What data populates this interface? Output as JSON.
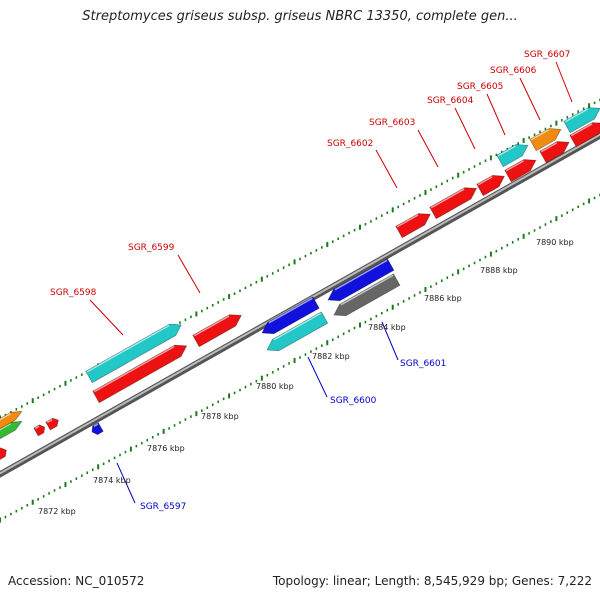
{
  "title": "Streptomyces griseus subsp. griseus NBRC 13350, complete gen...",
  "footer": {
    "accession": "Accession: NC_010572",
    "summary": "Topology: linear; Length: 8,545,929 bp; Genes: 7,222"
  },
  "colors": {
    "backbone": "#8c8c8c",
    "tick": "#1a7a1a",
    "forward_label": "#cc0000",
    "reverse_label": "#0000cc",
    "red": "#ee1111",
    "cyan": "#22c8c8",
    "blue": "#1111dd",
    "gray": "#666666",
    "orange": "#f08a10",
    "green": "#33bb33"
  },
  "scale_labels": [
    "7872 kbp",
    "7874 kbp",
    "7876 kbp",
    "7878 kbp",
    "7880 kbp",
    "7882 kbp",
    "7884 kbp",
    "7886 kbp",
    "7888 kbp",
    "7890 kbp"
  ],
  "gene_labels": {
    "forward": [
      "SGR_6598",
      "SGR_6599",
      "SGR_6602",
      "SGR_6603",
      "SGR_6604",
      "SGR_6605",
      "SGR_6606",
      "SGR_6607"
    ],
    "reverse": [
      "SGR_6597",
      "SGR_6600",
      "SGR_6601"
    ]
  }
}
